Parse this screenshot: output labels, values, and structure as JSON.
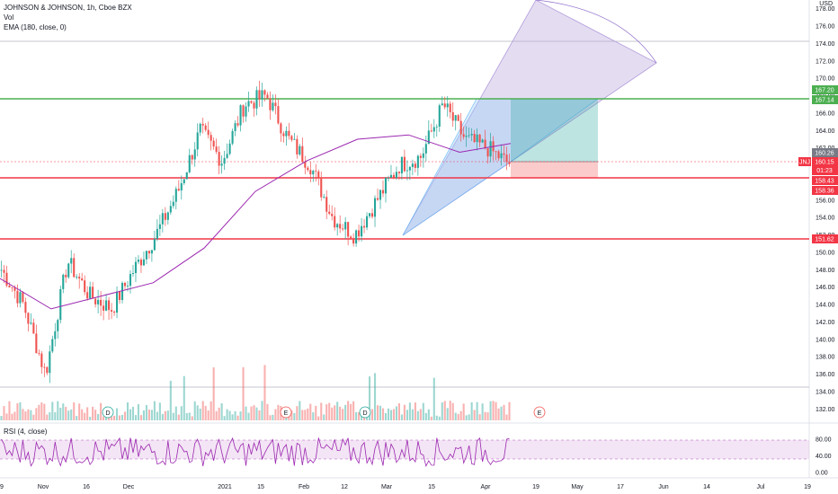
{
  "legend": {
    "symbol": "JOHNSON & JOHNSON, 1h, Cboe BZX",
    "volume": "Vol",
    "ema": "EMA (180, close, 0)",
    "rsi": "RSI (4, close)"
  },
  "axis": {
    "currency": "USD",
    "price_ticks": [
      "178.00",
      "176.00",
      "174.00",
      "172.00",
      "170.00",
      "168.00",
      "166.00",
      "164.00",
      "162.00",
      "160.00",
      "158.00",
      "156.00",
      "154.00",
      "152.00",
      "150.00",
      "148.00",
      "146.00",
      "144.00",
      "142.00",
      "140.00",
      "138.00",
      "136.00",
      "134.00",
      "132.00"
    ],
    "rsi_ticks": [
      "80.00",
      "40.00",
      "0.00"
    ],
    "time_ticks": [
      "9",
      "Nov",
      "16",
      "Dec",
      "2021",
      "15",
      "Feb",
      "12",
      "Mar",
      "15",
      "Apr",
      "19",
      "May",
      "17",
      "Jun",
      "14",
      "Jul",
      "19"
    ]
  },
  "price_labels": {
    "green_line": "167.20",
    "green_line_2": "167.14",
    "gray": "160.26",
    "symbol_tag": "JNJ",
    "current": "160.15",
    "countdown": "01:23",
    "red_1": "158.43",
    "red_2": "158.36",
    "red_3": "151.62"
  },
  "earnings_markers": [
    "D",
    "E",
    "D",
    "E"
  ],
  "colors": {
    "up": "#26a69a",
    "down": "#ef5350",
    "ema": "#9c27b0",
    "green_line": "#4caf50",
    "red_line": "#f23645",
    "rsi": "#9c27b0"
  },
  "chart_data": {
    "type": "line",
    "title": "JOHNSON & JOHNSON, 1h, Cboe BZX",
    "ylim": [
      131,
      179
    ],
    "x": [
      "9",
      "Nov",
      "16",
      "Dec",
      "2021",
      "15",
      "Feb",
      "12",
      "Mar",
      "15",
      "Apr"
    ],
    "series": [
      {
        "name": "EMA (180, close, 0)",
        "values": [
          147,
          143.5,
          145,
          146.5,
          150.5,
          157,
          160.5,
          163,
          163.5,
          161.5,
          162.5
        ]
      }
    ],
    "close_path": [
      148,
      144,
      136,
      149,
      145,
      143.5,
      148,
      152,
      157,
      164,
      160.5,
      167,
      168,
      163,
      160,
      154,
      152,
      156,
      160,
      161,
      167,
      163,
      162,
      160.15
    ],
    "horizontal_levels": [
      167.2,
      158.43,
      151.62
    ],
    "rsi_ylim": [
      0,
      100
    ]
  }
}
